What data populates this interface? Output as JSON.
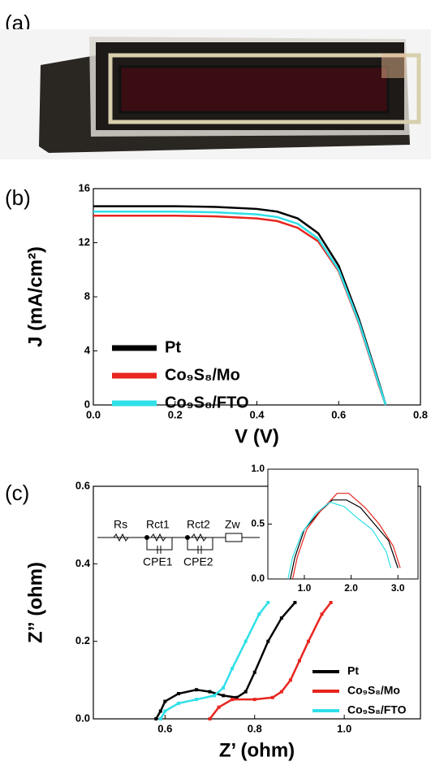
{
  "panel_labels": [
    "(a)",
    "(b)",
    "(c)"
  ],
  "circuit": {
    "labels": [
      "Rs",
      "Rct1",
      "Rct2",
      "Zw",
      "CPE1",
      "CPE2"
    ]
  },
  "chart_data": [
    {
      "type": "line",
      "xlabel": "V (V)",
      "ylabel": "J (mA/cm²)",
      "xlim": [
        0,
        0.8
      ],
      "ylim": [
        0,
        16
      ],
      "xticks": [
        {
          "value": 0,
          "label": "0.0"
        },
        {
          "value": 0.2,
          "label": "0.2"
        },
        {
          "value": 0.4,
          "label": "0.4"
        },
        {
          "value": 0.6,
          "label": "0.6"
        },
        {
          "value": 0.8,
          "label": "0.8"
        }
      ],
      "yticks": [
        0,
        4,
        8,
        12,
        16
      ],
      "legend": "lower left",
      "x": [
        0,
        0.1,
        0.2,
        0.3,
        0.4,
        0.45,
        0.5,
        0.55,
        0.6,
        0.65,
        0.7,
        0.715
      ],
      "series": [
        {
          "name": "Pt",
          "color": "#000000",
          "values": [
            14.7,
            14.7,
            14.7,
            14.65,
            14.5,
            14.3,
            13.8,
            12.7,
            10.3,
            6.3,
            1.5,
            0
          ]
        },
        {
          "name": "Co₉S₈/Mo",
          "color": "#e8251f",
          "values": [
            14.0,
            14.0,
            14.0,
            13.95,
            13.8,
            13.6,
            13.1,
            12.1,
            9.9,
            6.0,
            1.3,
            0
          ]
        },
        {
          "name": "Co₉S₈/FTO",
          "color": "#2fe0e8",
          "values": [
            14.3,
            14.3,
            14.3,
            14.25,
            14.1,
            13.9,
            13.4,
            12.3,
            10.0,
            6.1,
            1.4,
            0
          ]
        }
      ]
    },
    {
      "type": "line",
      "xlabel": "Z’ (ohm)",
      "ylabel": "Z” (ohm)",
      "xlim": [
        0.44,
        1.17
      ],
      "ylim": [
        0,
        0.6
      ],
      "xticks": [
        0.6,
        0.8,
        {
          "value": 1,
          "label": "1.0"
        }
      ],
      "yticks": [
        {
          "value": 0,
          "label": "0.0"
        },
        0.2,
        0.4,
        0.6
      ],
      "legend": "lower right",
      "markers": true,
      "series": [
        {
          "name": "Pt",
          "color": "#000000",
          "x": [
            0.58,
            0.59,
            0.6,
            0.63,
            0.67,
            0.7,
            0.73,
            0.76,
            0.78,
            0.8,
            0.83,
            0.86,
            0.89
          ],
          "values": [
            0,
            0.02,
            0.045,
            0.065,
            0.075,
            0.07,
            0.06,
            0.055,
            0.07,
            0.12,
            0.2,
            0.26,
            0.3
          ]
        },
        {
          "name": "Co₉S₈/Mo",
          "color": "#e8251f",
          "x": [
            0.7,
            0.72,
            0.75,
            0.8,
            0.84,
            0.86,
            0.88,
            0.9,
            0.92,
            0.95,
            0.97
          ],
          "values": [
            0,
            0.03,
            0.05,
            0.05,
            0.055,
            0.07,
            0.1,
            0.15,
            0.2,
            0.27,
            0.3
          ]
        },
        {
          "name": "Co₉S₈/FTO",
          "color": "#2fe0e8",
          "x": [
            0.59,
            0.6,
            0.63,
            0.67,
            0.71,
            0.73,
            0.75,
            0.78,
            0.81,
            0.83
          ],
          "values": [
            0,
            0.02,
            0.04,
            0.05,
            0.06,
            0.08,
            0.13,
            0.2,
            0.27,
            0.3
          ]
        }
      ]
    },
    {
      "type": "line",
      "xlim": [
        0.22,
        3.43
      ],
      "ylim": [
        0,
        1
      ],
      "xticks": [
        {
          "value": 1,
          "label": "1.0"
        },
        {
          "value": 2,
          "label": "2.0"
        },
        {
          "value": 3,
          "label": "3.0"
        }
      ],
      "yticks": [
        {
          "value": 0,
          "label": "0.0"
        },
        0.5,
        {
          "value": 1,
          "label": "1.0"
        }
      ],
      "series": [
        {
          "color": "#000000",
          "x": [
            0.7,
            0.8,
            1.0,
            1.3,
            1.6,
            1.9,
            2.2,
            2.5,
            2.8,
            3.0
          ],
          "values": [
            0,
            0.2,
            0.45,
            0.6,
            0.72,
            0.72,
            0.65,
            0.5,
            0.35,
            0.1
          ]
        },
        {
          "color": "#e8251f",
          "x": [
            0.75,
            0.85,
            1.05,
            1.35,
            1.7,
            1.95,
            2.3,
            2.6,
            2.9,
            3.05
          ],
          "values": [
            0,
            0.2,
            0.45,
            0.62,
            0.78,
            0.78,
            0.65,
            0.5,
            0.3,
            0.1
          ]
        },
        {
          "color": "#2fe0e8",
          "x": [
            0.65,
            0.75,
            0.95,
            1.25,
            1.55,
            1.85,
            2.15,
            2.45,
            2.75,
            2.85
          ],
          "values": [
            0,
            0.2,
            0.42,
            0.6,
            0.7,
            0.66,
            0.55,
            0.45,
            0.25,
            0.1
          ]
        }
      ]
    }
  ]
}
